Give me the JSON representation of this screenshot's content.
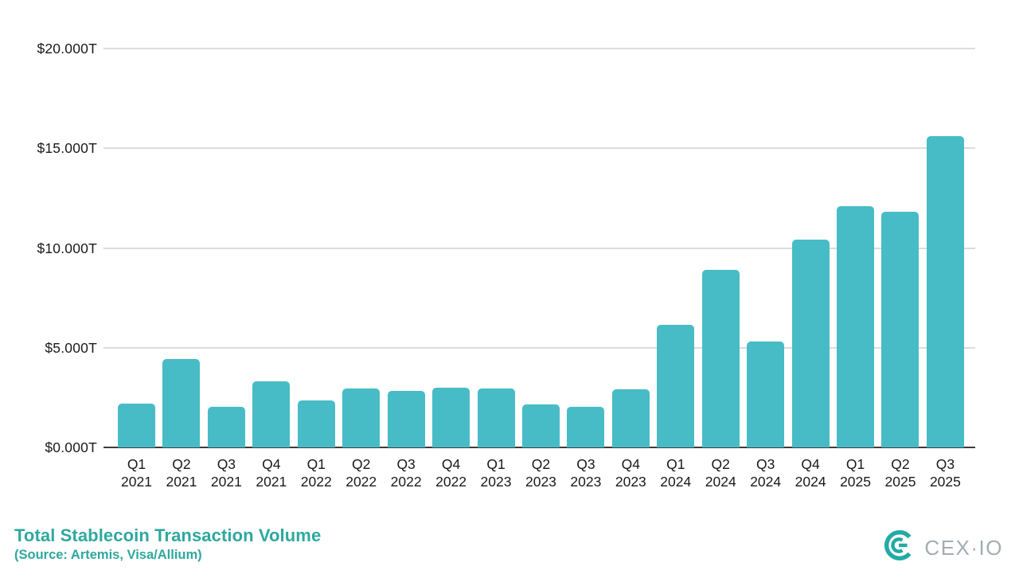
{
  "chart_data": {
    "type": "bar",
    "title": "Total Stablecoin Transaction Volume",
    "source_note": "(Source: Artemis, Visa/Allium)",
    "unit": "USD trillions",
    "categories": [
      "Q1 2021",
      "Q2 2021",
      "Q3 2021",
      "Q4 2021",
      "Q1 2022",
      "Q2 2022",
      "Q3 2022",
      "Q4 2022",
      "Q1 2023",
      "Q2 2023",
      "Q3 2023",
      "Q4 2023",
      "Q1 2024",
      "Q2 2024",
      "Q3 2024",
      "Q4 2024",
      "Q1 2025",
      "Q2 2025",
      "Q3 2025"
    ],
    "values": [
      2.2,
      4.45,
      2.05,
      3.3,
      2.35,
      2.95,
      2.85,
      3.0,
      2.95,
      2.15,
      2.05,
      2.9,
      6.15,
      8.9,
      5.3,
      10.4,
      12.1,
      11.8,
      15.6
    ],
    "y_ticks": [
      {
        "label": "$0.000T",
        "value": 0
      },
      {
        "label": "$5.000T",
        "value": 5
      },
      {
        "label": "$10.000T",
        "value": 10
      },
      {
        "label": "$15.000T",
        "value": 15
      },
      {
        "label": "$20.000T",
        "value": 20
      }
    ],
    "ylim": [
      0,
      20
    ],
    "xlabel": "",
    "ylabel": "",
    "grid": true,
    "legend": "none",
    "bar_color": "#47bcc6"
  },
  "footer": {
    "title": "Total Stablecoin Transaction Volume",
    "source": "(Source: Artemis, Visa/Allium)",
    "logo_text": "CEX·IO"
  },
  "colors": {
    "accent_teal": "#2fa89e",
    "bar": "#47bcc6",
    "gridline": "#dcdcdc",
    "axis_line": "#3d3d3d",
    "axis_text": "#1a1a1a",
    "logo_mark": "#23aaa5",
    "logo_text": "#a3adb3"
  }
}
